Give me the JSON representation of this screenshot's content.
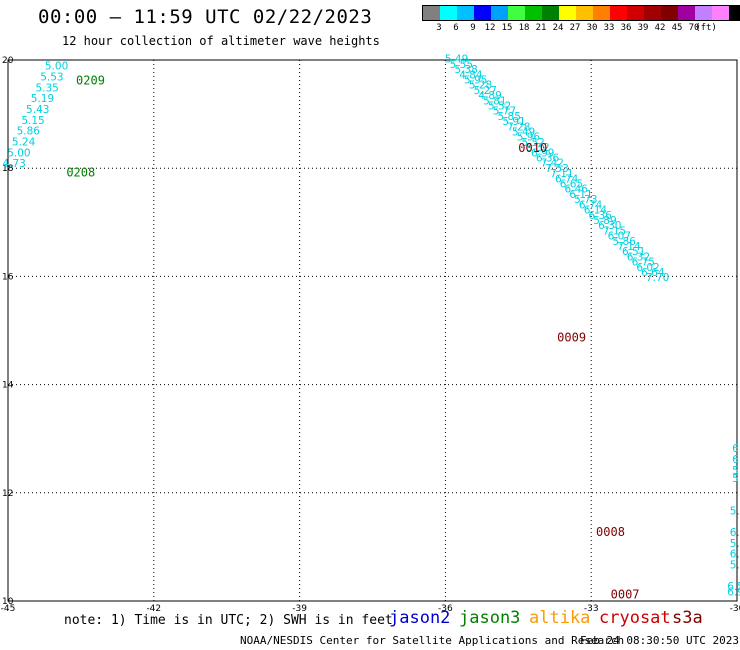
{
  "header": {
    "title": "00:00 – 11:59 UTC 02/22/2023",
    "subtitle": "12 hour collection of altimeter wave heights"
  },
  "legend": {
    "unit_label": "(ft)",
    "colors": [
      "#808080",
      "#00ffff",
      "#00c0ff",
      "#0000ff",
      "#00a0ff",
      "#40ff40",
      "#00c000",
      "#008000",
      "#ffff00",
      "#ffc000",
      "#ff8000",
      "#ff0000",
      "#d00000",
      "#a00000",
      "#800000",
      "#a000a0",
      "#c080ff",
      "#ff80ff",
      "#000000"
    ],
    "labels": [
      "3",
      "6",
      "9",
      "12",
      "15",
      "18",
      "21",
      "24",
      "27",
      "30",
      "33",
      "36",
      "39",
      "42",
      "45",
      "70"
    ]
  },
  "footer": {
    "note": "note:  1) Time is in UTC;  2) SWH is in feet",
    "credit": "NOAA/NESDIS Center for Satellite Applications and Research",
    "timestamp": "Feb 24 08:30:50 UTC 2023",
    "satellites": [
      {
        "name": "jason2",
        "color": "#0000d0"
      },
      {
        "name": "jason3",
        "color": "#008000"
      },
      {
        "name": "altika",
        "color": "#ff9900"
      },
      {
        "name": "cryosat",
        "color": "#cc0000"
      },
      {
        "name": "s3a",
        "color": "#800000"
      }
    ]
  },
  "map": {
    "lon_range": [
      -45,
      -30
    ],
    "lat_range": [
      10,
      20
    ],
    "lon_ticks": [
      "-45",
      "-42",
      "-39",
      "-36",
      "-33",
      "-30"
    ],
    "lat_ticks": [
      "20",
      "18",
      "16",
      "14",
      "12",
      "10"
    ],
    "value_color": "#00d0e0",
    "tracks": [
      {
        "id": "t0209",
        "color": "#00d0e0",
        "label": "0209",
        "label_color": "#008000",
        "label_index": 1,
        "values": [
          "5.00",
          "5.53",
          "5.35",
          "5.19",
          "5.43",
          "5.15",
          "5.86",
          "5.24",
          "5.00",
          "4.73"
        ],
        "start": [
          -44.0,
          19.82
        ],
        "step": [
          -0.097,
          -0.2
        ],
        "label_lon": -43.4,
        "label_index2": 9,
        "label2": "0208"
      },
      {
        "id": "t0010",
        "color": "#00d0e0",
        "segments": [
          {
            "values": [
              "5.49",
              "5.55",
              "5.38",
              "4.84",
              "5.95",
              "5.28",
              "5.27",
              "4.89",
              "5.81",
              "5.52",
              "5.77",
              "5.85",
              "5.91",
              "7.28",
              "5.49",
              "5.96",
              "5.52",
              "5.32",
              "6.99",
              "6.36",
              "7.42",
              "7.53",
              "7.11",
              "6.74",
              "6.65",
              "6.46",
              "6.11",
              "5.73",
              "6.74",
              "6.14",
              "6.36",
              "5.89",
              "6.30",
              "7.15",
              "6.07",
              "5.86",
              "7.14",
              "6.51",
              "6.32",
              "6.75",
              "6.02",
              "6.64",
              "7.70"
            ],
            "start": [
              -35.77,
              19.95
            ],
            "step": [
              0.0985,
              -0.2265
            ]
          }
        ]
      }
    ],
    "pass_labels": [
      {
        "text": "0209",
        "color": "#008000",
        "lon": -43.6,
        "lat": 19.55
      },
      {
        "text": "0208",
        "color": "#008000",
        "lon": -43.8,
        "lat": 17.85
      },
      {
        "text": "0010",
        "color": "#800000",
        "lon": -34.5,
        "lat": 18.3
      },
      {
        "text": "0009",
        "color": "#800000",
        "lon": -33.7,
        "lat": 14.8
      },
      {
        "text": "0008",
        "color": "#800000",
        "lon": -32.9,
        "lat": 11.2
      },
      {
        "text": "0007",
        "color": "#800000",
        "lon": -32.6,
        "lat": 10.05
      }
    ],
    "edge_values": [
      {
        "text": "6.",
        "lon": -30.1,
        "lat": 12.75
      },
      {
        "text": "6",
        "lon": -30.1,
        "lat": 12.55
      },
      {
        "text": "5",
        "lon": -30.1,
        "lat": 12.35
      },
      {
        "text": "5",
        "lon": -30.1,
        "lat": 12.2
      },
      {
        "text": "5.",
        "lon": -30.15,
        "lat": 11.6
      },
      {
        "text": "6.",
        "lon": -30.15,
        "lat": 11.2
      },
      {
        "text": "5.",
        "lon": -30.15,
        "lat": 11.0
      },
      {
        "text": "6.",
        "lon": -30.15,
        "lat": 10.8
      },
      {
        "text": "5.",
        "lon": -30.15,
        "lat": 10.6
      },
      {
        "text": "6.5",
        "lon": -30.2,
        "lat": 10.2
      },
      {
        "text": "6.9",
        "lon": -30.2,
        "lat": 10.1
      }
    ]
  }
}
